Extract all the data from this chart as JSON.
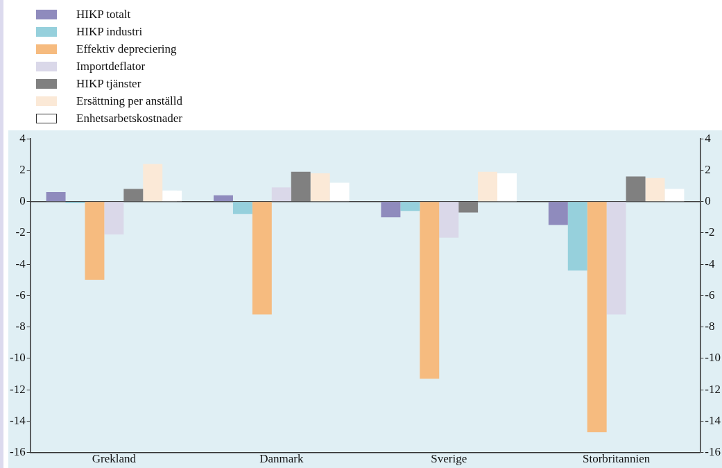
{
  "chart_data": {
    "type": "bar",
    "categories": [
      "Grekland",
      "Danmark",
      "Sverige",
      "Storbritannien"
    ],
    "series": [
      {
        "name": "HIKP totalt",
        "color": "#8f8bbd",
        "values": [
          0.6,
          0.4,
          -1.0,
          -1.5
        ]
      },
      {
        "name": "HIKP industri",
        "color": "#96d0dc",
        "values": [
          -0.1,
          -0.8,
          -0.6,
          -4.4
        ]
      },
      {
        "name": "Effektiv depreciering",
        "color": "#f6bb7f",
        "values": [
          -5.0,
          -7.2,
          -11.3,
          -14.7
        ]
      },
      {
        "name": "Importdeflator",
        "color": "#dad8e9",
        "values": [
          -2.1,
          0.9,
          -2.3,
          -7.2
        ]
      },
      {
        "name": "HIKP tjänster",
        "color": "#808080",
        "values": [
          0.8,
          1.9,
          -0.7,
          1.6
        ]
      },
      {
        "name": "Ersättning per anställd",
        "color": "#fbe9d7",
        "values": [
          2.4,
          1.8,
          1.9,
          1.5
        ]
      },
      {
        "name": "Enhetsarbetskostnader",
        "color": "#ffffff",
        "values": [
          0.7,
          1.2,
          1.8,
          0.8
        ]
      }
    ],
    "ylim": [
      -16,
      4
    ],
    "yticks": [
      -16,
      -14,
      -12,
      -10,
      -8,
      -6,
      -4,
      -2,
      0,
      2,
      4
    ],
    "y2lim": [
      -16,
      4
    ],
    "y2ticks": [
      -16,
      -14,
      -12,
      -10,
      -8,
      -6,
      -4,
      -2,
      0,
      2,
      4
    ],
    "ref_lines": [
      {
        "axis": "y",
        "value": 0,
        "color": "#404040"
      }
    ],
    "grid": false,
    "legend": "top left"
  }
}
